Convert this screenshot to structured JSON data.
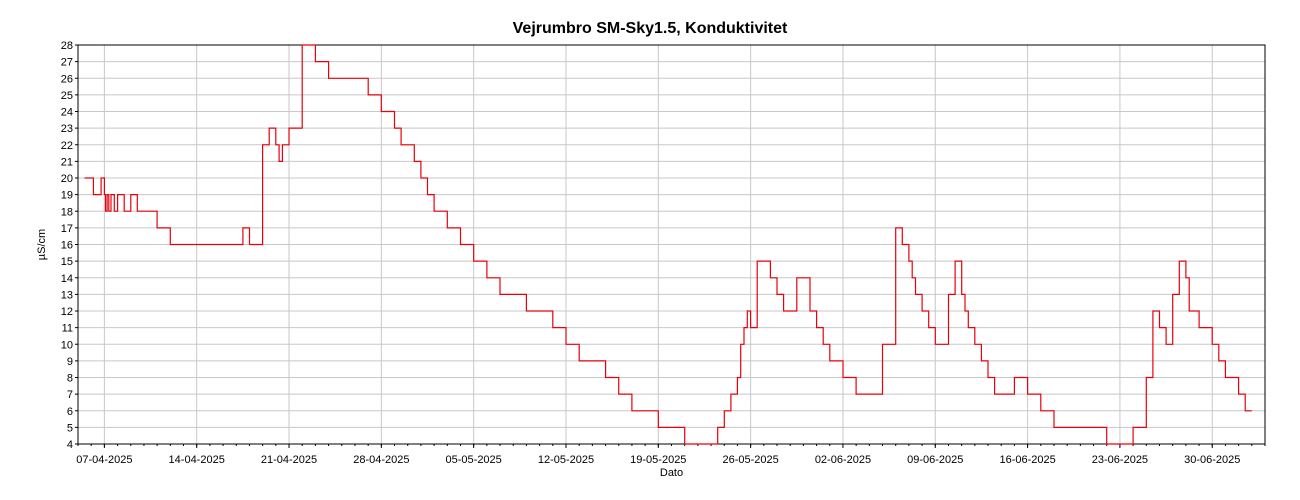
{
  "chart_data": {
    "type": "line",
    "title": "Vejrumbro SM-Sky1.5, Konduktivitet",
    "xlabel": "Dato",
    "ylabel": "µS/cm",
    "ylim": [
      4,
      28
    ],
    "y_ticks": [
      4,
      5,
      6,
      7,
      8,
      9,
      10,
      11,
      12,
      13,
      14,
      15,
      16,
      17,
      18,
      19,
      20,
      21,
      22,
      23,
      24,
      25,
      26,
      27,
      28
    ],
    "xlim": [
      "2025-04-05",
      "2025-07-04"
    ],
    "x_tick_labels": [
      "07-04-2025",
      "14-04-2025",
      "21-04-2025",
      "28-04-2025",
      "05-05-2025",
      "12-05-2025",
      "19-05-2025",
      "26-05-2025",
      "02-06-2025",
      "09-06-2025",
      "16-06-2025",
      "23-06-2025",
      "30-06-2025"
    ],
    "grid": true,
    "line_color": "#e8000b",
    "series": [
      {
        "x": [
          "2025-04-05 12:00",
          "2025-04-06 00:00",
          "2025-04-06 04:00",
          "2025-04-06 12:00",
          "2025-04-06 18:00",
          "2025-04-07 00:00",
          "2025-04-07 02:00",
          "2025-04-07 05:00",
          "2025-04-07 08:00",
          "2025-04-07 12:00",
          "2025-04-07 18:00",
          "2025-04-08 00:00",
          "2025-04-08 12:00",
          "2025-04-09 00:00",
          "2025-04-09 12:00",
          "2025-04-10 00:00",
          "2025-04-10 12:00",
          "2025-04-11 00:00",
          "2025-04-12 00:00",
          "2025-04-13 00:00",
          "2025-04-14 00:00",
          "2025-04-15 00:00",
          "2025-04-16 00:00",
          "2025-04-17 00:00",
          "2025-04-17 12:00",
          "2025-04-18 00:00",
          "2025-04-18 12:00",
          "2025-04-19 00:00",
          "2025-04-19 12:00",
          "2025-04-20 00:00",
          "2025-04-20 06:00",
          "2025-04-20 12:00",
          "2025-04-21 00:00",
          "2025-04-22 00:00",
          "2025-04-23 00:00",
          "2025-04-24 00:00",
          "2025-04-25 00:00",
          "2025-04-25 12:00",
          "2025-04-26 00:00",
          "2025-04-27 00:00",
          "2025-04-27 12:00",
          "2025-04-28 00:00",
          "2025-04-28 12:00",
          "2025-04-29 00:00",
          "2025-04-29 12:00",
          "2025-04-30 00:00",
          "2025-04-30 12:00",
          "2025-05-01 00:00",
          "2025-05-01 12:00",
          "2025-05-02 00:00",
          "2025-05-03 00:00",
          "2025-05-04 00:00",
          "2025-05-05 00:00",
          "2025-05-06 00:00",
          "2025-05-07 00:00",
          "2025-05-08 00:00",
          "2025-05-09 00:00",
          "2025-05-10 00:00",
          "2025-05-11 00:00",
          "2025-05-12 00:00",
          "2025-05-13 00:00",
          "2025-05-14 00:00",
          "2025-05-15 00:00",
          "2025-05-16 00:00",
          "2025-05-17 00:00",
          "2025-05-18 00:00",
          "2025-05-19 00:00",
          "2025-05-20 00:00",
          "2025-05-21 00:00",
          "2025-05-22 00:00",
          "2025-05-23 00:00",
          "2025-05-23 12:00",
          "2025-05-24 00:00",
          "2025-05-24 12:00",
          "2025-05-25 00:00",
          "2025-05-25 06:00",
          "2025-05-25 12:00",
          "2025-05-25 18:00",
          "2025-05-26 00:00",
          "2025-05-26 12:00",
          "2025-05-27 00:00",
          "2025-05-27 12:00",
          "2025-05-28 00:00",
          "2025-05-28 12:00",
          "2025-05-29 00:00",
          "2025-05-29 12:00",
          "2025-05-30 00:00",
          "2025-05-30 12:00",
          "2025-05-31 00:00",
          "2025-05-31 12:00",
          "2025-06-01 00:00",
          "2025-06-01 12:00",
          "2025-06-02 00:00",
          "2025-06-03 00:00",
          "2025-06-03 12:00",
          "2025-06-04 00:00",
          "2025-06-05 00:00",
          "2025-06-06 00:00",
          "2025-06-06 12:00",
          "2025-06-07 00:00",
          "2025-06-07 06:00",
          "2025-06-07 12:00",
          "2025-06-08 00:00",
          "2025-06-08 12:00",
          "2025-06-09 00:00",
          "2025-06-09 12:00",
          "2025-06-10 00:00",
          "2025-06-10 12:00",
          "2025-06-11 00:00",
          "2025-06-11 06:00",
          "2025-06-11 12:00",
          "2025-06-12 00:00",
          "2025-06-12 12:00",
          "2025-06-13 00:00",
          "2025-06-13 12:00",
          "2025-06-14 00:00",
          "2025-06-14 12:00",
          "2025-06-15 00:00",
          "2025-06-16 00:00",
          "2025-06-17 00:00",
          "2025-06-18 00:00",
          "2025-06-19 00:00",
          "2025-06-20 00:00",
          "2025-06-21 00:00",
          "2025-06-22 00:00",
          "2025-06-23 00:00",
          "2025-06-24 00:00",
          "2025-06-25 00:00",
          "2025-06-25 12:00",
          "2025-06-26 00:00",
          "2025-06-26 12:00",
          "2025-06-27 00:00",
          "2025-06-27 12:00",
          "2025-06-28 00:00",
          "2025-06-28 06:00",
          "2025-06-28 12:00",
          "2025-06-29 00:00",
          "2025-06-30 00:00",
          "2025-06-30 12:00",
          "2025-07-01 00:00",
          "2025-07-02 00:00",
          "2025-07-02 12:00",
          "2025-07-03 00:00"
        ],
        "values": [
          20,
          20,
          19,
          19,
          20,
          19,
          18,
          19,
          18,
          19,
          18,
          19,
          18,
          19,
          18,
          18,
          18,
          17,
          16,
          16,
          16,
          16,
          16,
          16,
          17,
          16,
          16,
          22,
          23,
          22,
          21,
          22,
          23,
          28,
          27,
          26,
          26,
          26,
          26,
          25,
          25,
          24,
          24,
          23,
          22,
          22,
          21,
          20,
          19,
          18,
          17,
          16,
          15,
          14,
          13,
          13,
          12,
          12,
          11,
          10,
          9,
          9,
          8,
          7,
          6,
          6,
          5,
          5,
          4,
          4,
          4,
          5,
          6,
          7,
          8,
          10,
          11,
          12,
          11,
          15,
          15,
          14,
          13,
          12,
          12,
          14,
          14,
          12,
          11,
          10,
          9,
          9,
          8,
          7,
          7,
          7,
          10,
          17,
          16,
          15,
          14,
          13,
          12,
          11,
          10,
          10,
          13,
          15,
          13,
          12,
          11,
          10,
          9,
          8,
          7,
          7,
          7,
          8,
          7,
          6,
          5,
          5,
          5,
          5,
          4,
          4,
          5,
          8,
          12,
          11,
          10,
          13,
          15,
          14,
          12,
          12,
          11,
          10,
          9,
          8,
          7,
          6,
          6
        ]
      }
    ]
  }
}
